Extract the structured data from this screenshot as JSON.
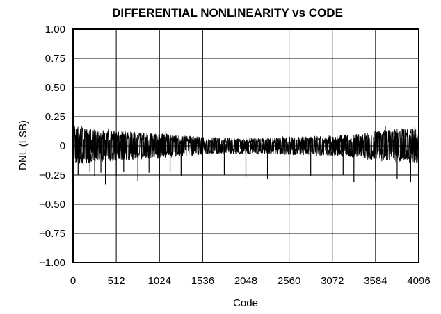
{
  "chart_data": {
    "type": "line",
    "title": "DIFFERENTIAL NONLINEARITY vs CODE",
    "xlabel": "Code",
    "ylabel": "DNL (LSB)",
    "xlim": [
      0,
      4096
    ],
    "ylim": [
      -1.0,
      1.0
    ],
    "x_ticks": [
      0,
      512,
      1024,
      1536,
      2048,
      2560,
      3072,
      3584,
      4096
    ],
    "x_tick_labels": [
      "0",
      "512",
      "1024",
      "1536",
      "2048",
      "2560",
      "3072",
      "3584",
      "4096"
    ],
    "y_ticks": [
      1.0,
      0.75,
      0.5,
      0.25,
      0,
      -0.25,
      -0.5,
      -0.75,
      -1.0
    ],
    "y_tick_labels": [
      "1.00",
      "0.75",
      "0.50",
      "0.25",
      "0",
      "−0.25",
      "−0.50",
      "−0.75",
      "−1.00"
    ],
    "grid": true,
    "series": [
      {
        "color": "#000000",
        "envelope": {
          "x": [
            0,
            256,
            512,
            768,
            1024,
            1280,
            1536,
            1792,
            2048,
            2304,
            2560,
            2816,
            3072,
            3328,
            3584,
            3840,
            4096
          ],
          "upper": [
            0.17,
            0.14,
            0.13,
            0.12,
            0.11,
            0.09,
            0.08,
            0.07,
            0.07,
            0.07,
            0.08,
            0.08,
            0.09,
            0.1,
            0.13,
            0.15,
            0.16
          ],
          "lower": [
            -0.17,
            -0.14,
            -0.13,
            -0.12,
            -0.11,
            -0.09,
            -0.08,
            -0.07,
            -0.07,
            -0.07,
            -0.08,
            -0.08,
            -0.09,
            -0.1,
            -0.13,
            -0.14,
            -0.15
          ]
        },
        "spikes": [
          {
            "x": 60,
            "y": -0.25
          },
          {
            "x": 200,
            "y": -0.22
          },
          {
            "x": 256,
            "y": -0.26
          },
          {
            "x": 330,
            "y": -0.23
          },
          {
            "x": 384,
            "y": -0.33
          },
          {
            "x": 512,
            "y": -0.26
          },
          {
            "x": 600,
            "y": -0.22
          },
          {
            "x": 768,
            "y": -0.3
          },
          {
            "x": 900,
            "y": -0.23
          },
          {
            "x": 1024,
            "y": -0.29
          },
          {
            "x": 1150,
            "y": -0.22
          },
          {
            "x": 1280,
            "y": -0.26
          },
          {
            "x": 1536,
            "y": -0.28
          },
          {
            "x": 1792,
            "y": -0.25
          },
          {
            "x": 2048,
            "y": -0.27
          },
          {
            "x": 2304,
            "y": -0.28
          },
          {
            "x": 2560,
            "y": -0.27
          },
          {
            "x": 2816,
            "y": -0.26
          },
          {
            "x": 3072,
            "y": -0.29
          },
          {
            "x": 3200,
            "y": -0.25
          },
          {
            "x": 3328,
            "y": -0.31
          },
          {
            "x": 3584,
            "y": -0.3
          },
          {
            "x": 3840,
            "y": -0.28
          },
          {
            "x": 4000,
            "y": -0.31
          },
          {
            "x": 100,
            "y": 0.17
          },
          {
            "x": 420,
            "y": 0.15
          },
          {
            "x": 1100,
            "y": 0.13
          },
          {
            "x": 3700,
            "y": 0.17
          },
          {
            "x": 4050,
            "y": 0.16
          }
        ]
      }
    ]
  }
}
